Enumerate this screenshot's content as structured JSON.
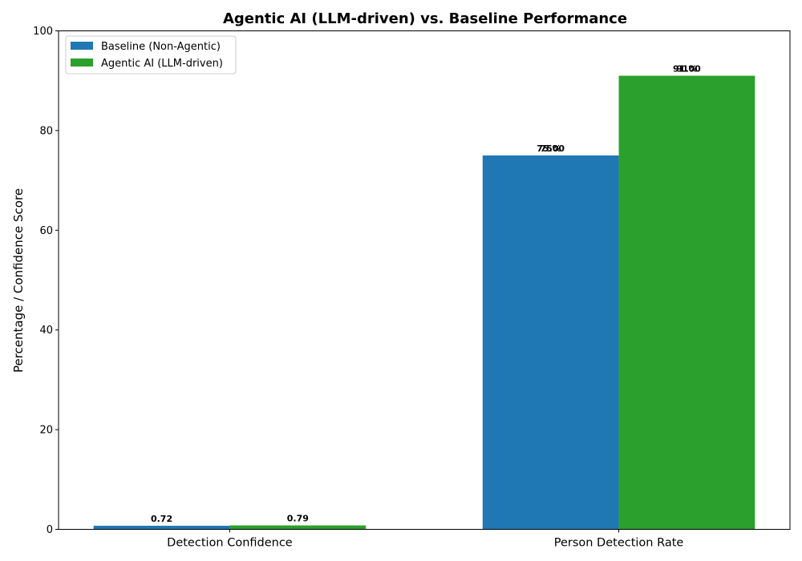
{
  "chart_data": {
    "type": "bar",
    "title": "Agentic AI (LLM-driven) vs. Baseline Performance",
    "xlabel": "",
    "ylabel": "Percentage / Confidence Score",
    "ylim": [
      0,
      100
    ],
    "yticks": [
      "0",
      "20",
      "40",
      "60",
      "80",
      "100"
    ],
    "categories": [
      "Detection Confidence",
      "Person Detection Rate"
    ],
    "series": [
      {
        "name": "Baseline (Non-Agentic)",
        "color": "#1f77b4",
        "values": [
          0.72,
          75
        ],
        "labels": [
          [
            "0.72"
          ],
          [
            "75%",
            "75.00"
          ]
        ]
      },
      {
        "name": "Agentic AI (LLM-driven)",
        "color": "#2ca02c",
        "values": [
          0.79,
          91
        ],
        "labels": [
          [
            "0.79"
          ],
          [
            "91%",
            "91.00"
          ]
        ]
      }
    ],
    "grid": false,
    "legend_position": "top-left"
  }
}
